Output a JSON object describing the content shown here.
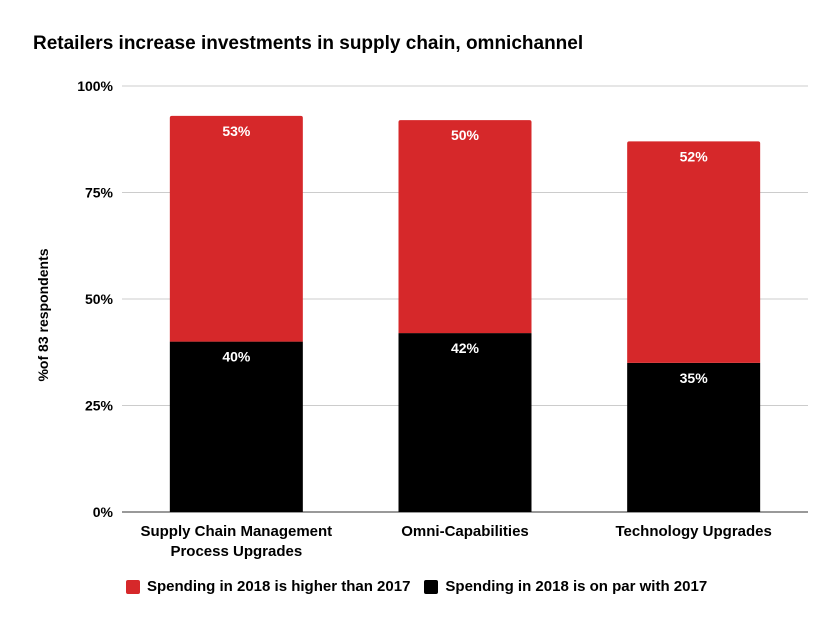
{
  "chart_data": {
    "type": "bar",
    "stacked": true,
    "title": "Retailers increase investments in supply chain, omnichannel",
    "xlabel": "",
    "ylabel": "%of 83 respondents",
    "ylim": [
      0,
      100
    ],
    "yticks": [
      "0%",
      "25%",
      "50%",
      "75%",
      "100%"
    ],
    "grid": true,
    "legend_position": "bottom",
    "categories": [
      "Supply Chain Management Process Upgrades",
      "Omni-Capabilities",
      "Technology Upgrades"
    ],
    "category_lines": [
      [
        "Supply Chain Management",
        "Process Upgrades"
      ],
      [
        "Omni-Capabilities"
      ],
      [
        "Technology Upgrades"
      ]
    ],
    "series": [
      {
        "name": "Spending in 2018 is on par with 2017",
        "color": "#000000",
        "values": [
          40,
          42,
          35
        ],
        "labels": [
          "40%",
          "42%",
          "35%"
        ]
      },
      {
        "name": "Spending in 2018 is higher than 2017",
        "color": "#d6282a",
        "values": [
          53,
          50,
          52
        ],
        "labels": [
          "53%",
          "50%",
          "52%"
        ]
      }
    ],
    "legend_order": [
      1,
      0
    ]
  }
}
